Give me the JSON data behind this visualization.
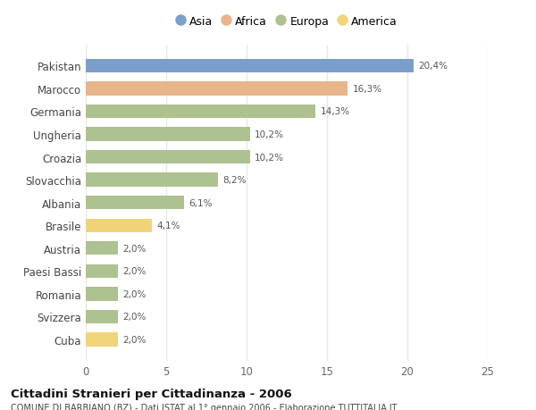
{
  "countries": [
    "Pakistan",
    "Marocco",
    "Germania",
    "Ungheria",
    "Croazia",
    "Slovacchia",
    "Albania",
    "Brasile",
    "Austria",
    "Paesi Bassi",
    "Romania",
    "Svizzera",
    "Cuba"
  ],
  "values": [
    20.4,
    16.3,
    14.3,
    10.2,
    10.2,
    8.2,
    6.1,
    4.1,
    2.0,
    2.0,
    2.0,
    2.0,
    2.0
  ],
  "labels": [
    "20,4%",
    "16,3%",
    "14,3%",
    "10,2%",
    "10,2%",
    "8,2%",
    "6,1%",
    "4,1%",
    "2,0%",
    "2,0%",
    "2,0%",
    "2,0%",
    "2,0%"
  ],
  "colors": [
    "#7b9fca",
    "#e8b48a",
    "#aec190",
    "#aec190",
    "#aec190",
    "#aec190",
    "#aec190",
    "#f0d47a",
    "#aec190",
    "#aec190",
    "#aec190",
    "#aec190",
    "#f0d47a"
  ],
  "legend_labels": [
    "Asia",
    "Africa",
    "Europa",
    "America"
  ],
  "legend_colors": [
    "#7b9fca",
    "#e8b48a",
    "#aec190",
    "#f0d47a"
  ],
  "title": "Cittadini Stranieri per Cittadinanza - 2006",
  "subtitle": "COMUNE DI BARBIANO (BZ) - Dati ISTAT al 1° gennaio 2006 - Elaborazione TUTTITALIA.IT",
  "xlim": [
    0,
    25
  ],
  "xticks": [
    0,
    5,
    10,
    15,
    20,
    25
  ],
  "background_color": "#ffffff",
  "grid_color": "#e8e8e8",
  "bar_height": 0.6
}
